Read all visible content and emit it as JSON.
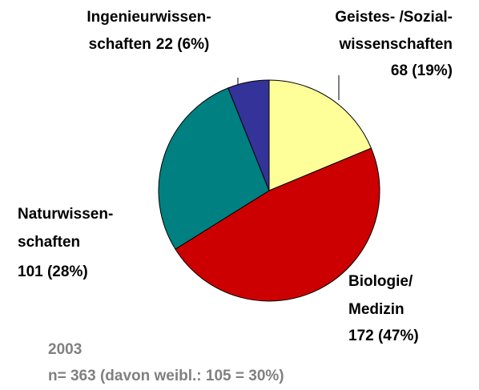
{
  "chart_data": {
    "type": "pie",
    "categories": [
      [
        "Geistes- /Sozial-",
        "wissenschaften"
      ],
      [
        "Biologie/",
        "Medizin"
      ],
      [
        "Naturwissen-",
        "schaften"
      ],
      [
        "Ingenieurwissen-",
        "schaften"
      ]
    ],
    "values": [
      68,
      172,
      101,
      22
    ],
    "value_labels": [
      "68 (19%)",
      "172 (47%)",
      "101 (28%)",
      "22 (6%)"
    ],
    "colors": [
      "#ffff99",
      "#cc0000",
      "#008080",
      "#333399"
    ],
    "footer": [
      "2003",
      "n= 363 (davon weibl.: 105 = 30%)"
    ]
  }
}
